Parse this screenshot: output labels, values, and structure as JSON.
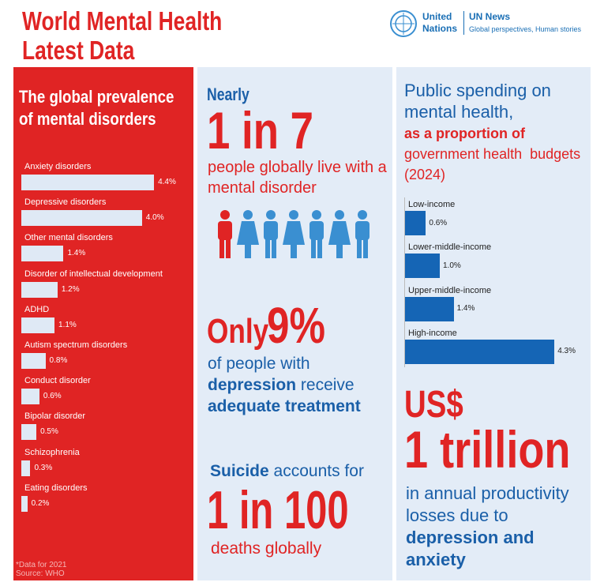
{
  "header": {
    "title": [
      "World Mental Health",
      "Latest Data"
    ],
    "un_name": [
      "United",
      "Nations"
    ],
    "news_title": "UN News",
    "news_tagline": "Global perspectives, Human stories"
  },
  "chart_data": [
    {
      "type": "bar",
      "orientation": "horizontal",
      "title": "The global prevalence of mental disorders",
      "categories": [
        "Anxiety disorders",
        "Depressive disorders",
        "Other mental disorders",
        "Disorder of intellectual development",
        "ADHD",
        "Autism spectrum disorders",
        "Conduct disorder",
        "Bipolar disorder",
        "Schizophrenia",
        "Eating disorders"
      ],
      "values": [
        4.4,
        4.0,
        1.4,
        1.2,
        1.1,
        0.8,
        0.6,
        0.5,
        0.3,
        0.2
      ],
      "value_labels": [
        "4.4%",
        "4.0%",
        "1.4%",
        "1.2%",
        "1.1%",
        "0.8%",
        "0.6%",
        "0.5%",
        "0.3%",
        "0.2%"
      ],
      "color": "#dfe9f5",
      "notes": [
        "*Data for 2021",
        "Source: WHO"
      ]
    },
    {
      "type": "bar",
      "orientation": "horizontal",
      "title": [
        "Public spending on",
        "mental health,",
        "as a proportion of",
        "government health  budgets",
        "(2024)"
      ],
      "categories": [
        "Low-income",
        "Lower-middle-income",
        "Upper-middle-income",
        "High-income"
      ],
      "values": [
        0.6,
        1.0,
        1.4,
        4.3
      ],
      "value_labels": [
        "0.6%",
        "1.0%",
        "1.4%",
        "4.3%"
      ],
      "color": "#1565b5"
    }
  ],
  "stats": {
    "prevalence": {
      "lead": "Nearly",
      "figure": "1 in 7",
      "text": "people globally live with a mental disorder"
    },
    "treatment": {
      "lead": "Only",
      "figure": "9%",
      "parts": [
        "of people with",
        "depression",
        "receive",
        "adequate treatment"
      ]
    },
    "suicide": {
      "parts": [
        "Suicide",
        "accounts for"
      ],
      "figure": "1 in 100",
      "text": "deaths globally"
    },
    "losses": {
      "lead": "US$",
      "figure": "1 trillion",
      "text": "in annual productivity losses due to",
      "emphasis": "depression and anxiety"
    }
  }
}
